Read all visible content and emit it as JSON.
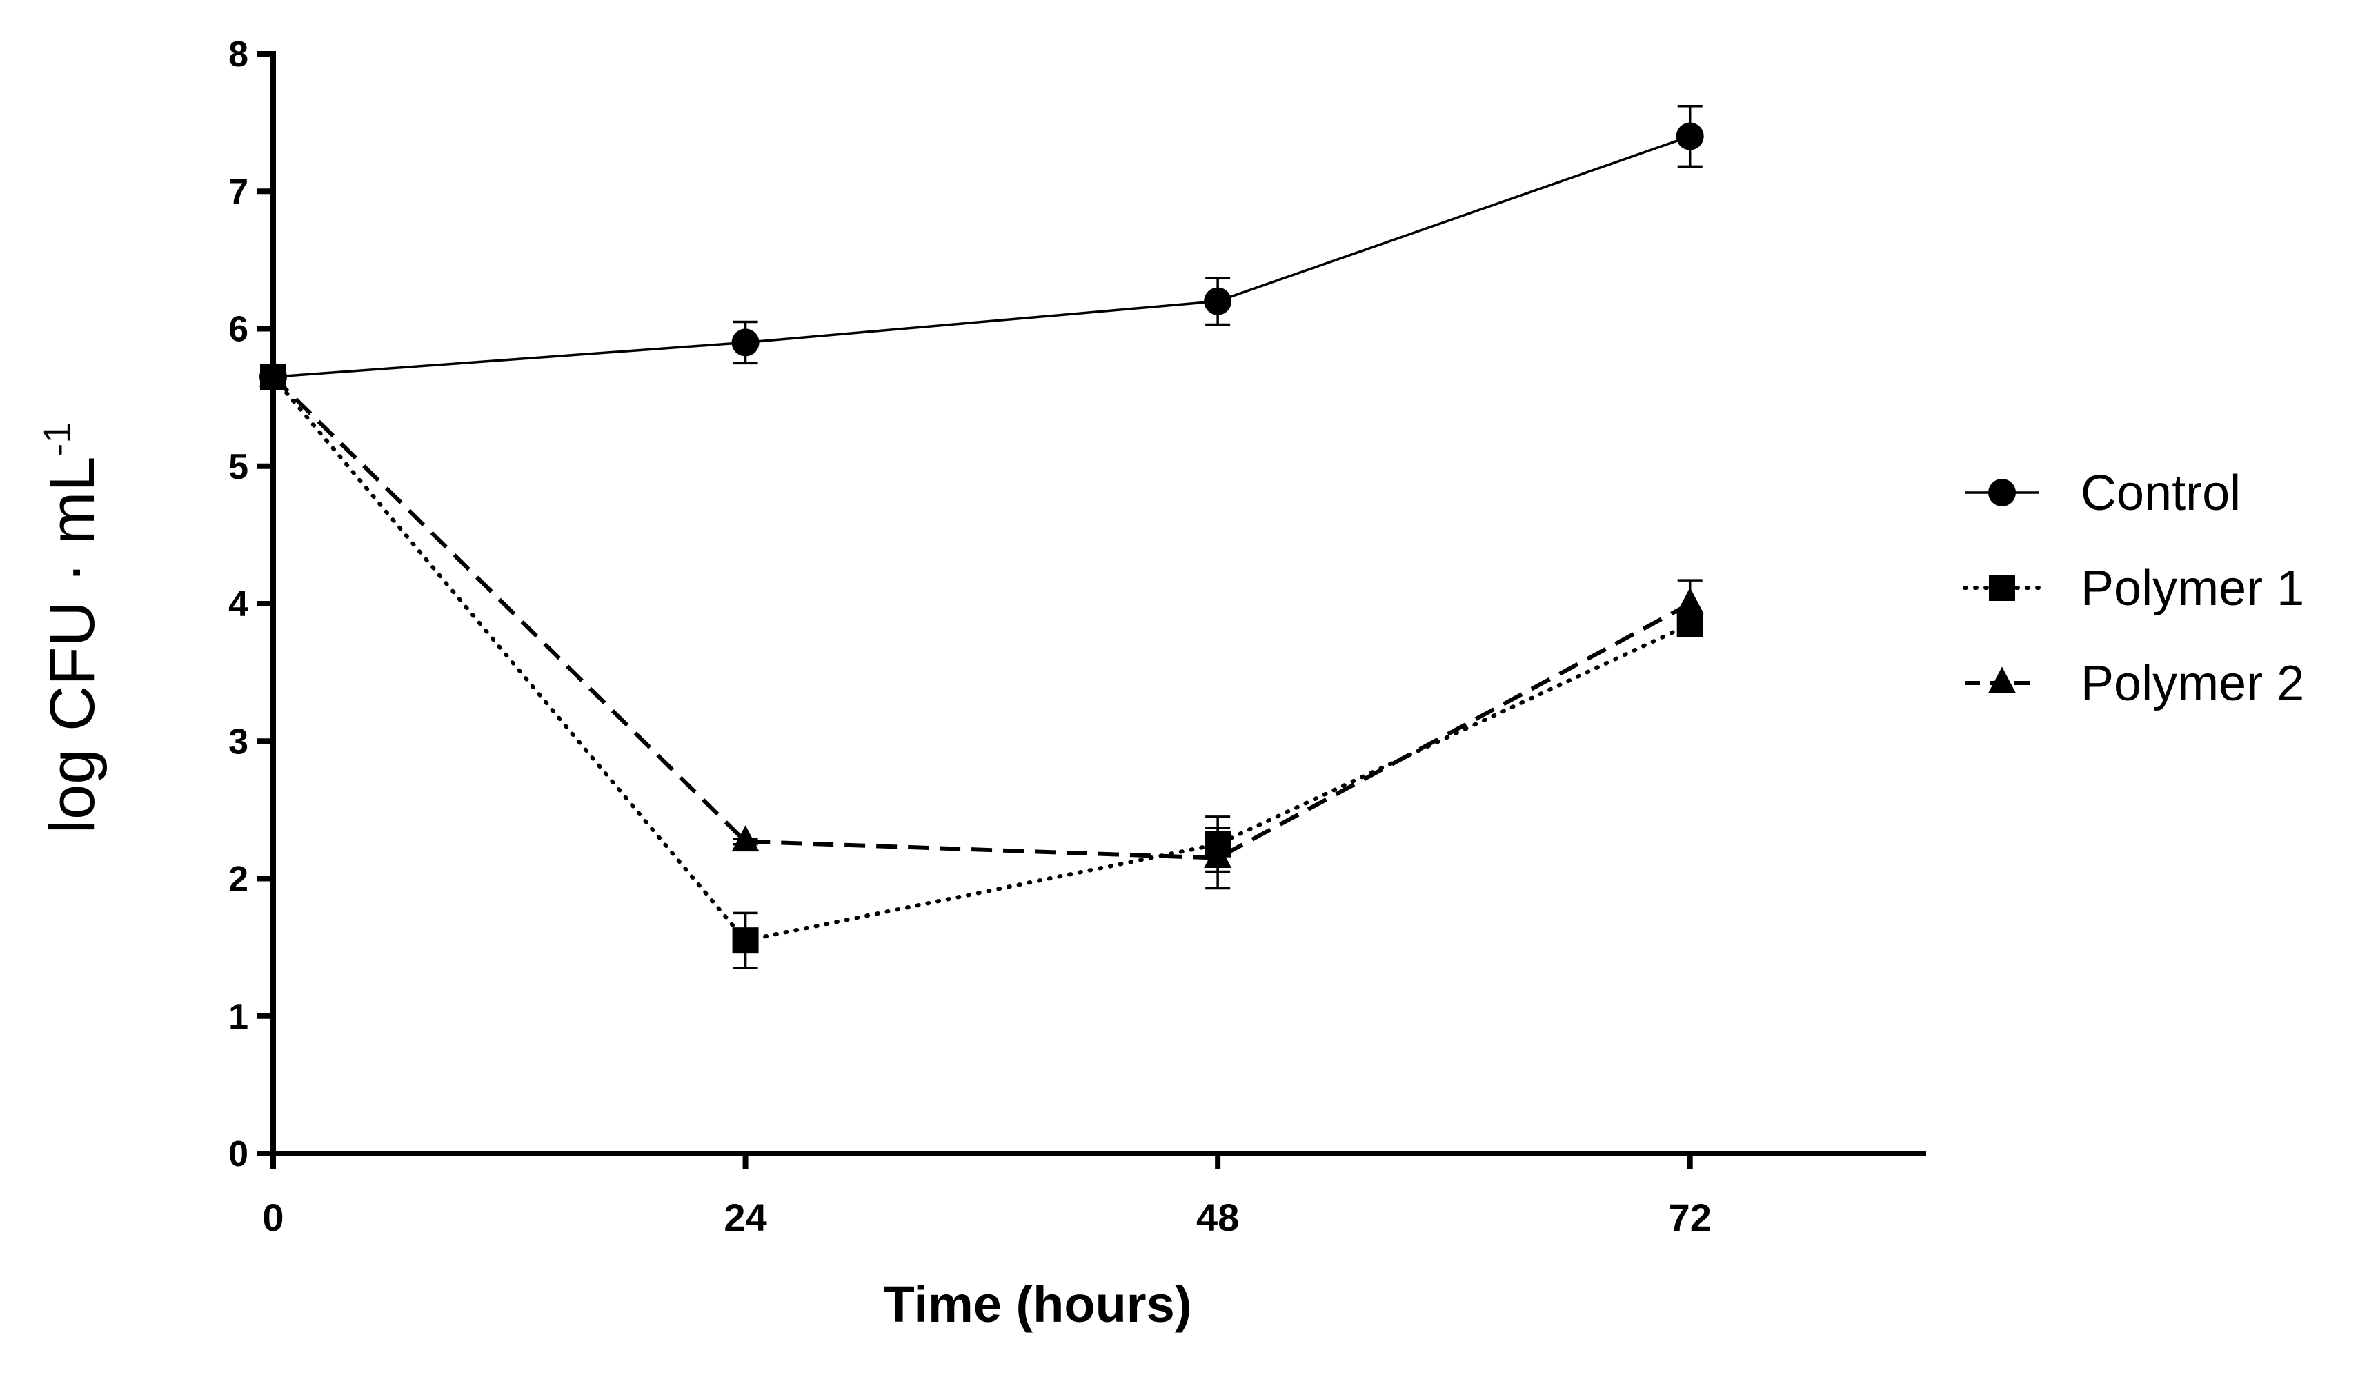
{
  "chart_data": {
    "type": "line",
    "title": "",
    "xlabel": "Time (hours)",
    "ylabel_main": "log CFU · mL",
    "ylabel_superscript": "-1",
    "x": [
      0,
      24,
      48,
      72
    ],
    "x_tick_labels": [
      "0",
      "24",
      "48",
      "72"
    ],
    "xlim": [
      0,
      84
    ],
    "ylim": [
      0,
      8
    ],
    "y_ticks": [
      0,
      1,
      2,
      3,
      4,
      5,
      6,
      7,
      8
    ],
    "y_tick_labels": [
      "0",
      "1",
      "2",
      "3",
      "4",
      "5",
      "6",
      "7",
      "8"
    ],
    "grid": false,
    "legend_position": "right",
    "series": [
      {
        "name": "Control",
        "marker": "circle",
        "line_style": "solid",
        "values": [
          5.65,
          5.9,
          6.2,
          7.4
        ],
        "errors": [
          0,
          0.15,
          0.17,
          0.22
        ]
      },
      {
        "name": "Polymer 1",
        "marker": "square",
        "line_style": "dotted",
        "values": [
          5.65,
          1.55,
          2.25,
          3.85
        ],
        "errors": [
          0,
          0.2,
          0.2,
          0.05
        ]
      },
      {
        "name": "Polymer 2",
        "marker": "triangle",
        "line_style": "dashed",
        "values": [
          5.65,
          2.27,
          2.15,
          4.0
        ],
        "errors": [
          0,
          0.02,
          0.22,
          0.17
        ]
      }
    ]
  }
}
